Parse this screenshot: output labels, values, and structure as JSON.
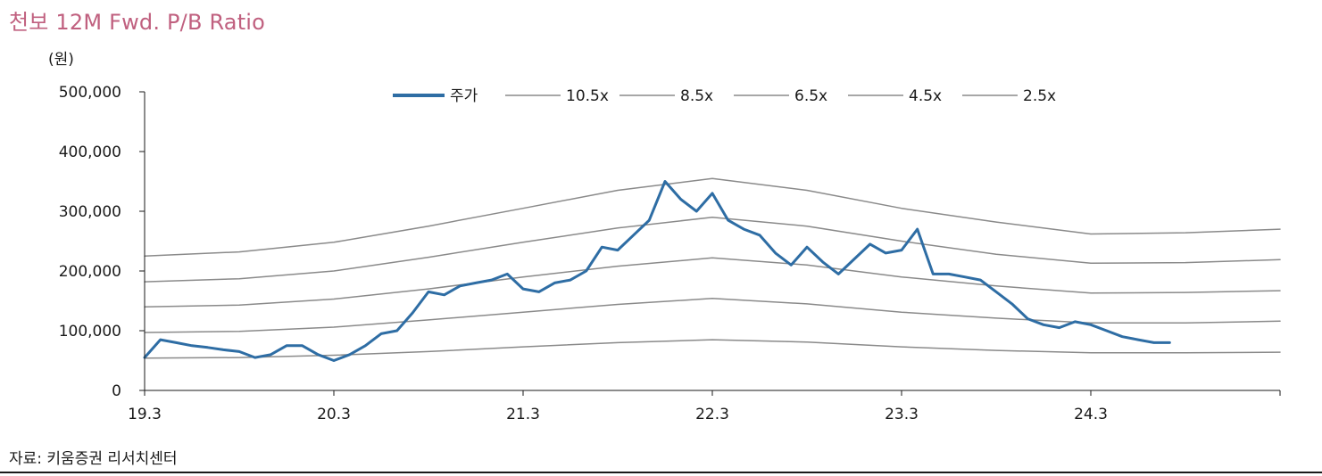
{
  "title": "천보 12M Fwd. P/B Ratio",
  "source": "자료: 키움증권 리서치센터",
  "colors": {
    "price": "#2e6da4",
    "band": "#8a8a8a",
    "title": "#c0607f"
  },
  "chart_data": {
    "type": "line",
    "unit_label": "(원)",
    "ylim": [
      0,
      500000
    ],
    "y_ticks": [
      0,
      100000,
      200000,
      300000,
      400000,
      500000
    ],
    "y_tick_labels": [
      "0",
      "100,000",
      "200,000",
      "300,000",
      "400,000",
      "500,000"
    ],
    "x_ticks": [
      "2019-03",
      "2020-03",
      "2021-03",
      "2022-03",
      "2023-03",
      "2024-03"
    ],
    "x_tick_labels": [
      "19.3",
      "20.3",
      "21.3",
      "22.3",
      "23.3",
      "24.3"
    ],
    "xlim": [
      "2019-03",
      "2025-03"
    ],
    "legend_position": "top-center",
    "grid": false,
    "series": [
      {
        "name": "주가",
        "style": "price",
        "x": [
          "2019-03",
          "2019-04",
          "2019-05",
          "2019-06",
          "2019-07",
          "2019-08",
          "2019-09",
          "2019-10",
          "2019-11",
          "2019-12",
          "2020-01",
          "2020-02",
          "2020-03",
          "2020-04",
          "2020-05",
          "2020-06",
          "2020-07",
          "2020-08",
          "2020-09",
          "2020-10",
          "2020-11",
          "2020-12",
          "2021-01",
          "2021-02",
          "2021-03",
          "2021-04",
          "2021-05",
          "2021-06",
          "2021-07",
          "2021-08",
          "2021-09",
          "2021-10",
          "2021-11",
          "2021-12",
          "2022-01",
          "2022-02",
          "2022-03",
          "2022-04",
          "2022-05",
          "2022-06",
          "2022-07",
          "2022-08",
          "2022-09",
          "2022-10",
          "2022-11",
          "2022-12",
          "2023-01",
          "2023-02",
          "2023-03",
          "2023-04",
          "2023-05",
          "2023-06",
          "2023-07",
          "2023-08",
          "2023-09",
          "2023-10",
          "2023-11",
          "2023-12",
          "2024-01",
          "2024-02",
          "2024-03",
          "2024-04",
          "2024-05",
          "2024-06",
          "2024-07",
          "2024-08"
        ],
        "values": [
          55000,
          85000,
          80000,
          75000,
          72000,
          68000,
          65000,
          55000,
          60000,
          75000,
          75000,
          60000,
          50000,
          60000,
          75000,
          95000,
          100000,
          130000,
          165000,
          160000,
          175000,
          180000,
          185000,
          195000,
          170000,
          165000,
          180000,
          185000,
          200000,
          240000,
          235000,
          260000,
          285000,
          350000,
          320000,
          300000,
          330000,
          285000,
          270000,
          260000,
          230000,
          210000,
          240000,
          215000,
          195000,
          220000,
          245000,
          230000,
          235000,
          270000,
          195000,
          195000,
          190000,
          185000,
          165000,
          145000,
          120000,
          110000,
          105000,
          115000,
          110000,
          100000,
          90000,
          85000,
          80000,
          80000
        ]
      },
      {
        "name": "10.5x",
        "style": "band",
        "x": [
          "2019-03",
          "2019-09",
          "2020-03",
          "2020-09",
          "2021-03",
          "2021-09",
          "2022-03",
          "2022-09",
          "2023-03",
          "2023-09",
          "2024-03",
          "2024-09",
          "2025-03"
        ],
        "values": [
          225000,
          232000,
          248000,
          275000,
          305000,
          335000,
          355000,
          335000,
          305000,
          282000,
          262000,
          264000,
          270000
        ]
      },
      {
        "name": "8.5x",
        "style": "band",
        "x": [
          "2019-03",
          "2019-09",
          "2020-03",
          "2020-09",
          "2021-03",
          "2021-09",
          "2022-03",
          "2022-09",
          "2023-03",
          "2023-09",
          "2024-03",
          "2024-09",
          "2025-03"
        ],
        "values": [
          182000,
          187000,
          200000,
          223000,
          248000,
          272000,
          290000,
          275000,
          250000,
          228000,
          213000,
          214000,
          219000
        ]
      },
      {
        "name": "6.5x",
        "style": "band",
        "x": [
          "2019-03",
          "2019-09",
          "2020-03",
          "2020-09",
          "2021-03",
          "2021-09",
          "2022-03",
          "2022-09",
          "2023-03",
          "2023-09",
          "2024-03",
          "2024-09",
          "2025-03"
        ],
        "values": [
          140000,
          143000,
          153000,
          170000,
          190000,
          208000,
          222000,
          210000,
          190000,
          175000,
          163000,
          164000,
          167000
        ]
      },
      {
        "name": "4.5x",
        "style": "band",
        "x": [
          "2019-03",
          "2019-09",
          "2020-03",
          "2020-09",
          "2021-03",
          "2021-09",
          "2022-03",
          "2022-09",
          "2023-03",
          "2023-09",
          "2024-03",
          "2024-09",
          "2025-03"
        ],
        "values": [
          97000,
          99000,
          106000,
          118000,
          131000,
          144000,
          154000,
          145000,
          131000,
          121000,
          113000,
          113000,
          116000
        ]
      },
      {
        "name": "2.5x",
        "style": "band",
        "x": [
          "2019-03",
          "2019-09",
          "2020-03",
          "2020-09",
          "2021-03",
          "2021-09",
          "2022-03",
          "2022-09",
          "2023-03",
          "2023-09",
          "2024-03",
          "2024-09",
          "2025-03"
        ],
        "values": [
          54000,
          55000,
          59000,
          65000,
          73000,
          80000,
          85000,
          81000,
          73000,
          67000,
          63000,
          63000,
          64000
        ]
      }
    ]
  }
}
